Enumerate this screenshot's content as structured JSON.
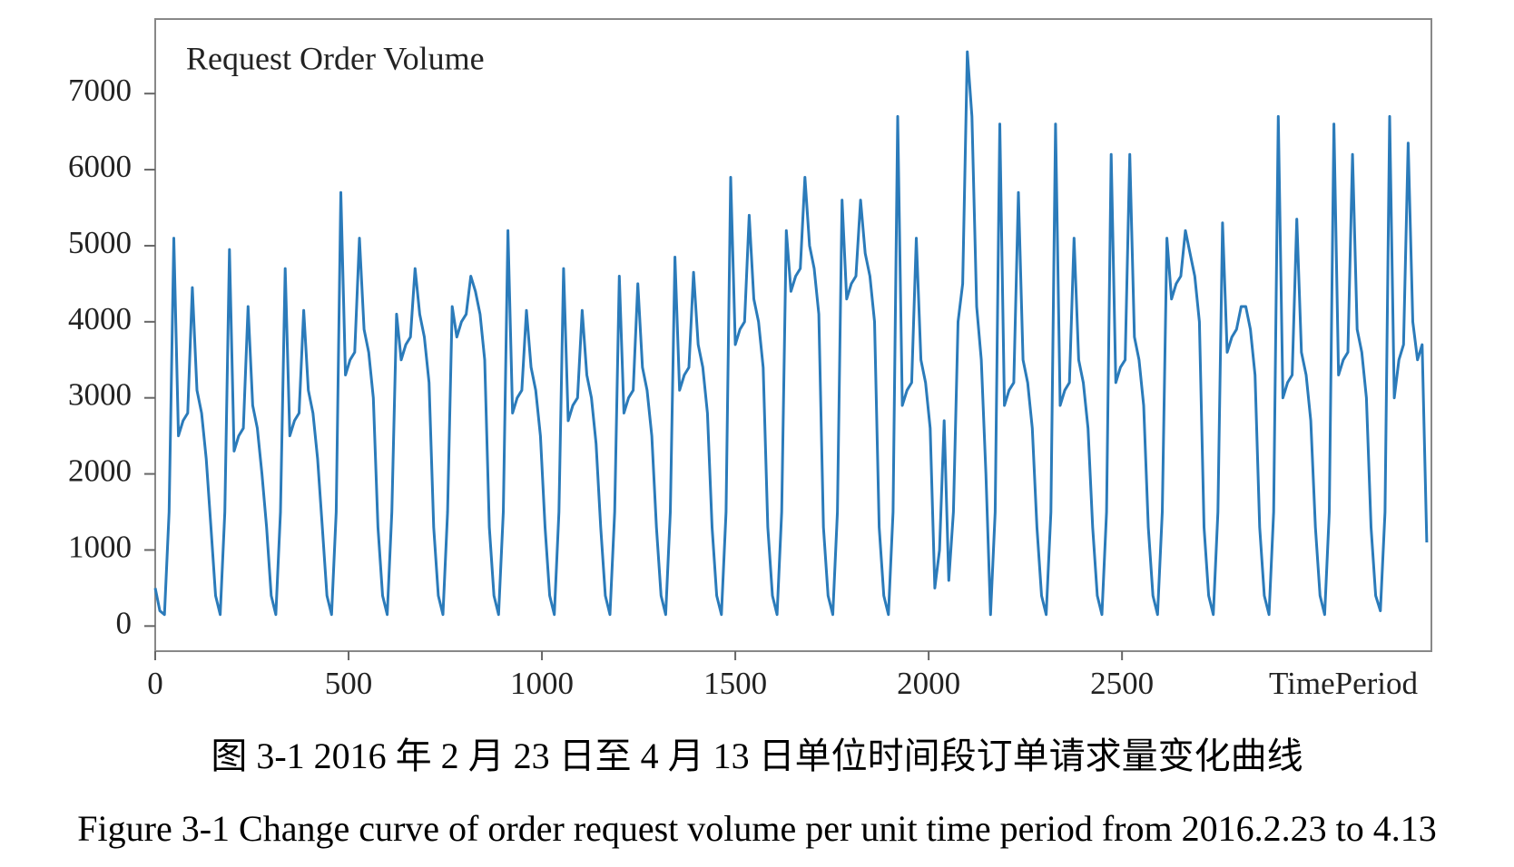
{
  "chart_data": {
    "type": "line",
    "title": "Request Order Volume",
    "x_label": "TimePeriod",
    "caption_zh": "图 3-1 2016 年 2 月 23 日至 4 月 13 日单位时间段订单请求量变化曲线",
    "caption_en": "Figure 3-1 Change curve of order request volume per unit time period from 2016.2.23 to 4.13",
    "color": "#2b7bba",
    "xlim": [
      0,
      3300
    ],
    "xticks": [
      0,
      500,
      1000,
      1500,
      2000,
      2500
    ],
    "ylim": [
      -330,
      7980
    ],
    "yticks": [
      0,
      1000,
      2000,
      3000,
      4000,
      5000,
      6000,
      7000
    ],
    "x": [
      0,
      12,
      24,
      36,
      48,
      60,
      72,
      84,
      96,
      108,
      120,
      132,
      144,
      156,
      168,
      180,
      192,
      204,
      216,
      228,
      240,
      252,
      264,
      276,
      288,
      300,
      312,
      324,
      336,
      348,
      360,
      372,
      384,
      396,
      408,
      420,
      432,
      444,
      456,
      468,
      480,
      492,
      504,
      516,
      528,
      540,
      552,
      564,
      576,
      588,
      600,
      612,
      624,
      636,
      648,
      660,
      672,
      684,
      696,
      708,
      720,
      732,
      744,
      756,
      768,
      780,
      792,
      804,
      816,
      828,
      840,
      852,
      864,
      876,
      888,
      900,
      912,
      924,
      936,
      948,
      960,
      972,
      984,
      996,
      1008,
      1020,
      1032,
      1044,
      1056,
      1068,
      1080,
      1092,
      1104,
      1116,
      1128,
      1140,
      1152,
      1164,
      1176,
      1188,
      1200,
      1212,
      1224,
      1236,
      1248,
      1260,
      1272,
      1284,
      1296,
      1308,
      1320,
      1332,
      1344,
      1356,
      1368,
      1380,
      1392,
      1404,
      1416,
      1428,
      1440,
      1452,
      1464,
      1476,
      1488,
      1500,
      1512,
      1524,
      1536,
      1548,
      1560,
      1572,
      1584,
      1596,
      1608,
      1620,
      1632,
      1644,
      1656,
      1668,
      1680,
      1692,
      1704,
      1716,
      1728,
      1740,
      1752,
      1764,
      1776,
      1788,
      1800,
      1812,
      1824,
      1836,
      1848,
      1860,
      1872,
      1884,
      1896,
      1908,
      1920,
      1932,
      1944,
      1956,
      1968,
      1980,
      1992,
      2004,
      2016,
      2028,
      2040,
      2052,
      2064,
      2076,
      2088,
      2100,
      2112,
      2124,
      2136,
      2148,
      2160,
      2172,
      2184,
      2196,
      2208,
      2220,
      2232,
      2244,
      2256,
      2268,
      2280,
      2292,
      2304,
      2316,
      2328,
      2340,
      2352,
      2364,
      2376,
      2388,
      2400,
      2412,
      2424,
      2436,
      2448,
      2460,
      2472,
      2484,
      2496,
      2508,
      2520,
      2532,
      2544,
      2556,
      2568,
      2580,
      2592,
      2604,
      2616,
      2628,
      2640,
      2652,
      2664,
      2676,
      2688,
      2700,
      2712,
      2724,
      2736,
      2748,
      2760,
      2772,
      2784,
      2796,
      2808,
      2820,
      2832,
      2844,
      2856,
      2868,
      2880,
      2892,
      2904,
      2916,
      2928,
      2940,
      2952,
      2964,
      2976,
      2988,
      3000,
      3012,
      3024,
      3036,
      3048,
      3060,
      3072,
      3084,
      3096,
      3108,
      3120,
      3132,
      3144,
      3156,
      3168,
      3180,
      3192,
      3204,
      3216,
      3228,
      3240,
      3252,
      3264,
      3276,
      3288
    ],
    "values": [
      500,
      200,
      150,
      1500,
      5100,
      2500,
      2700,
      2800,
      4450,
      3100,
      2800,
      2200,
      1300,
      400,
      150,
      1500,
      4950,
      2300,
      2500,
      2600,
      4200,
      2900,
      2600,
      2000,
      1300,
      400,
      150,
      1500,
      4700,
      2500,
      2700,
      2800,
      4150,
      3100,
      2800,
      2200,
      1300,
      400,
      150,
      1500,
      5700,
      3300,
      3500,
      3600,
      5100,
      3900,
      3600,
      3000,
      1300,
      400,
      150,
      1500,
      4100,
      3500,
      3700,
      3800,
      4700,
      4100,
      3800,
      3200,
      1300,
      400,
      150,
      1500,
      4200,
      3800,
      4000,
      4100,
      4600,
      4400,
      4100,
      3500,
      1300,
      400,
      150,
      1500,
      5200,
      2800,
      3000,
      3100,
      4150,
      3400,
      3100,
      2500,
      1300,
      400,
      150,
      1500,
      4700,
      2700,
      2900,
      3000,
      4150,
      3300,
      3000,
      2400,
      1300,
      400,
      150,
      1500,
      4600,
      2800,
      3000,
      3100,
      4500,
      3400,
      3100,
      2500,
      1300,
      400,
      150,
      1500,
      4850,
      3100,
      3300,
      3400,
      4650,
      3700,
      3400,
      2800,
      1300,
      400,
      150,
      1500,
      5900,
      3700,
      3900,
      4000,
      5400,
      4300,
      4000,
      3400,
      1300,
      400,
      150,
      1500,
      5200,
      4400,
      4600,
      4700,
      5900,
      5000,
      4700,
      4100,
      1300,
      400,
      150,
      1500,
      5600,
      4300,
      4500,
      4600,
      5600,
      4900,
      4600,
      4000,
      1300,
      400,
      150,
      1500,
      6700,
      2900,
      3100,
      3200,
      5100,
      3500,
      3200,
      2600,
      500,
      1000,
      2700,
      600,
      1500,
      4000,
      4500,
      7550,
      6700,
      4200,
      3500,
      2000,
      150,
      1500,
      6600,
      2900,
      3100,
      3200,
      5700,
      3500,
      3200,
      2600,
      1300,
      400,
      150,
      1500,
      6600,
      2900,
      3100,
      3200,
      5100,
      3500,
      3200,
      2600,
      1300,
      400,
      150,
      1500,
      6200,
      3200,
      3400,
      3500,
      6200,
      3800,
      3500,
      2900,
      1300,
      400,
      150,
      1500,
      5100,
      4300,
      4500,
      4600,
      5200,
      4900,
      4600,
      4000,
      1300,
      400,
      150,
      1500,
      5300,
      3600,
      3800,
      3900,
      4200,
      4200,
      3900,
      3300,
      1300,
      400,
      150,
      1500,
      6700,
      3000,
      3200,
      3300,
      5350,
      3600,
      3300,
      2700,
      1300,
      400,
      150,
      1500,
      6600,
      3300,
      3500,
      3600,
      6200,
      3900,
      3600,
      3000,
      1300,
      400,
      200,
      1500,
      6700,
      3000,
      3500,
      3700,
      6350,
      4000,
      3500,
      3700,
      1100
    ]
  }
}
